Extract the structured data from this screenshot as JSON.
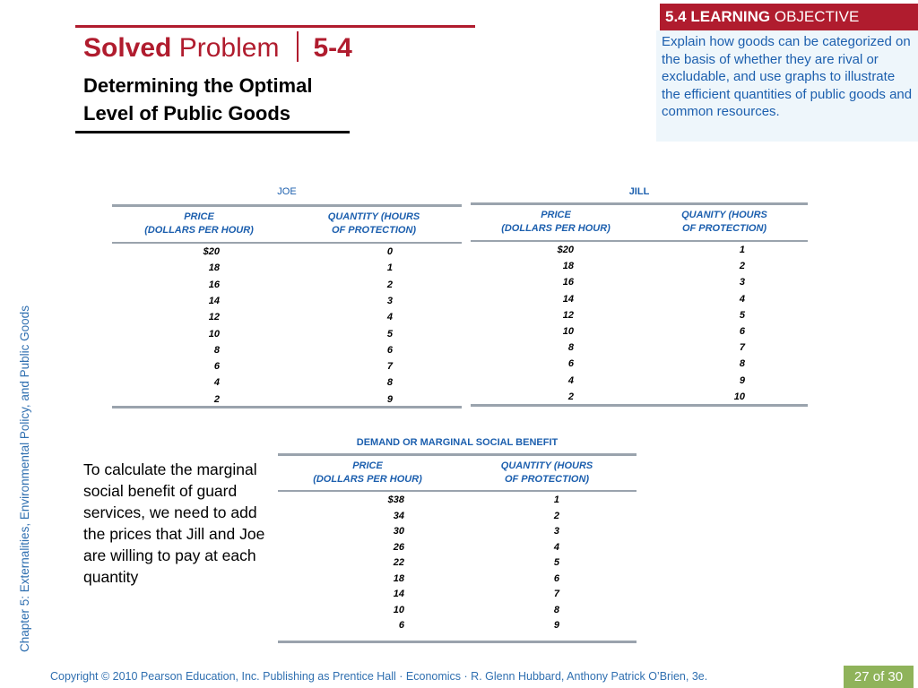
{
  "header": {
    "title_word1": "Solved",
    "title_word2": "Problem",
    "number": "5-4",
    "subtitle_line1": "Determining the Optimal",
    "subtitle_line2": "Level of Public Goods"
  },
  "objective": {
    "label_bold": "5.4 LEARNING",
    "label_rest": "OBJECTIVE",
    "text": "Explain how goods can be categorized on the basis of whether they are rival or excludable, and use graphs to illustrate the efficient quantities of public goods and common resources."
  },
  "side_label": "Chapter 5: Externalities, Environmental Policy, and Public Goods",
  "joe_table": {
    "title": "JOE",
    "col1": [
      "PRICE",
      "(DOLLARS PER HOUR)"
    ],
    "col2": [
      "QUANTITY (HOURS",
      "OF PROTECTION)"
    ],
    "prices": [
      "$20",
      "18",
      "16",
      "14",
      "12",
      "10",
      "8",
      "6",
      "4",
      "2"
    ],
    "quantities": [
      "0",
      "1",
      "2",
      "3",
      "4",
      "5",
      "6",
      "7",
      "8",
      "9"
    ]
  },
  "jill_table": {
    "title": "JILL",
    "col1": [
      "PRICE",
      "(DOLLARS PER HOUR)"
    ],
    "col2": [
      "QUANITY (HOURS",
      "OF PROTECTION)"
    ],
    "prices": [
      "$20",
      "18",
      "16",
      "14",
      "12",
      "10",
      "8",
      "6",
      "4",
      "2"
    ],
    "quantities": [
      "1",
      "2",
      "3",
      "4",
      "5",
      "6",
      "7",
      "8",
      "9",
      "10"
    ]
  },
  "demand_table": {
    "title": "DEMAND OR MARGINAL SOCIAL BENEFIT",
    "col1": [
      "PRICE",
      "(DOLLARS PER HOUR)"
    ],
    "col2": [
      "QUANTITY (HOURS",
      "OF PROTECTION)"
    ],
    "prices": [
      "$38",
      "34",
      "30",
      "26",
      "22",
      "18",
      "14",
      "10",
      "6"
    ],
    "quantities": [
      "1",
      "2",
      "3",
      "4",
      "5",
      "6",
      "7",
      "8",
      "9"
    ]
  },
  "calc_text": "To calculate the marginal social benefit of guard services, we need to add the prices that Jill and Joe are willing to pay at each quantity",
  "footer": {
    "copyright": "Copyright © 2010 Pearson Education, Inc. Publishing as Prentice Hall · Economics · R. Glenn Hubbard, Anthony Patrick O’Brien, 3e.",
    "page": "27 of 30"
  }
}
